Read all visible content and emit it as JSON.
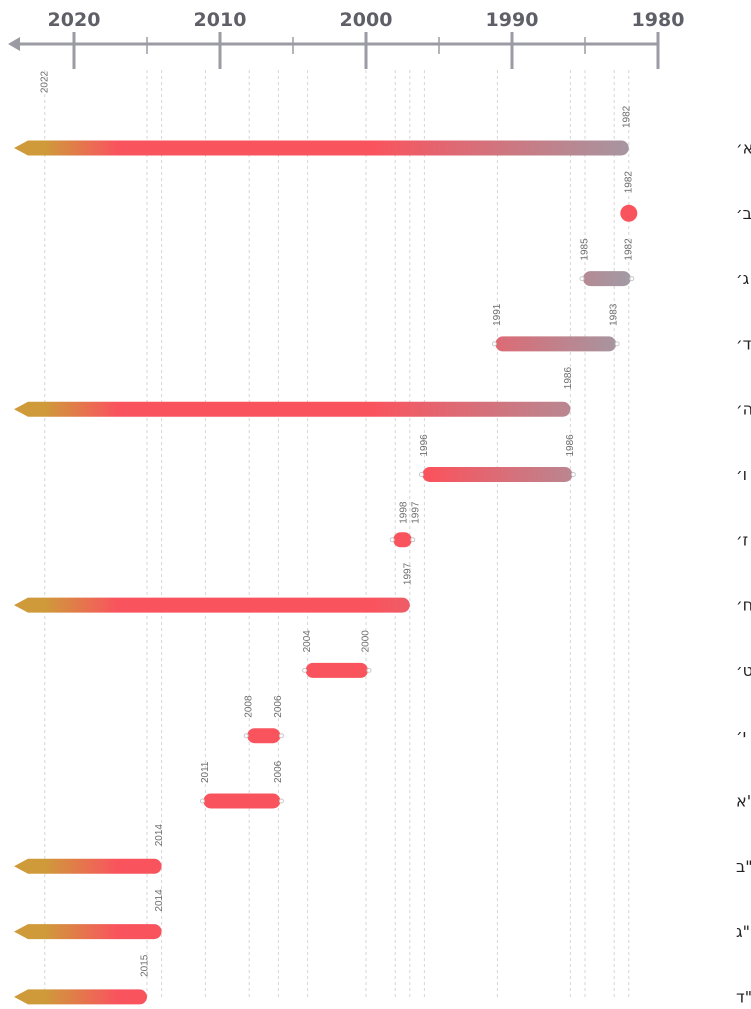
{
  "chart_data": {
    "type": "timeline",
    "axis": {
      "direction": "reversed",
      "ticks": [
        2020,
        2010,
        2000,
        1990,
        1980
      ],
      "minor_ticks": [
        2015,
        2005,
        1995,
        1985
      ],
      "start": 1980,
      "end": 2024
    },
    "colors": {
      "axis": "#9b9ba3",
      "old": "#a19aa4",
      "middle": "#f9545e",
      "recent": "#cf9a3a",
      "grid": "#d6d6d6"
    },
    "grid_years": [
      2022,
      2015,
      2014,
      2011,
      2008,
      2006,
      2004,
      2000,
      1998,
      1997,
      1996,
      1991,
      1986,
      1985,
      1983,
      1982
    ],
    "grid_labels": [
      {
        "year": 2022,
        "text": "2022"
      }
    ],
    "rows": [
      {
        "label": "פרשה א׳",
        "start": 1982,
        "end": null,
        "ongoing": true,
        "labels": [
          "1982"
        ]
      },
      {
        "label": "פרשה ב׳",
        "start": 1982,
        "end": 1982,
        "ongoing": false,
        "labels": [
          "1982"
        ]
      },
      {
        "label": "פרשה ג׳",
        "start": 1982,
        "end": 1985,
        "ongoing": false,
        "labels": [
          "1982",
          "1985"
        ]
      },
      {
        "label": "פרשה ד׳",
        "start": 1983,
        "end": 1991,
        "ongoing": false,
        "labels": [
          "1983",
          "1991"
        ]
      },
      {
        "label": "פרשה ה׳",
        "start": 1986,
        "end": null,
        "ongoing": true,
        "labels": [
          "1986"
        ]
      },
      {
        "label": "פרשה ו׳",
        "start": 1986,
        "end": 1996,
        "ongoing": false,
        "labels": [
          "1986",
          "1996"
        ]
      },
      {
        "label": "פרשה ז׳",
        "start": 1997,
        "end": 1998,
        "ongoing": false,
        "labels": [
          "1997",
          "1998"
        ]
      },
      {
        "label": "פרשה ח׳",
        "start": 1997,
        "end": null,
        "ongoing": true,
        "labels": [
          "1997"
        ]
      },
      {
        "label": "פרשה ט׳",
        "start": 2000,
        "end": 2004,
        "ongoing": false,
        "labels": [
          "2000",
          "2004"
        ]
      },
      {
        "label": "פרשה י׳",
        "start": 2006,
        "end": 2008,
        "ongoing": false,
        "labels": [
          "2006",
          "2008"
        ]
      },
      {
        "label": "פרשה י\"א",
        "start": 2006,
        "end": 2011,
        "ongoing": false,
        "labels": [
          "2006",
          "2011"
        ]
      },
      {
        "label": "פרשה י\"ב",
        "start": 2014,
        "end": null,
        "ongoing": true,
        "labels": [
          "2014"
        ]
      },
      {
        "label": "פרשה י\"ג",
        "start": 2014,
        "end": null,
        "ongoing": true,
        "labels": [
          "2014"
        ]
      },
      {
        "label": "פרשה י\"ד",
        "start": 2015,
        "end": null,
        "ongoing": true,
        "labels": [
          "2015"
        ]
      }
    ]
  }
}
